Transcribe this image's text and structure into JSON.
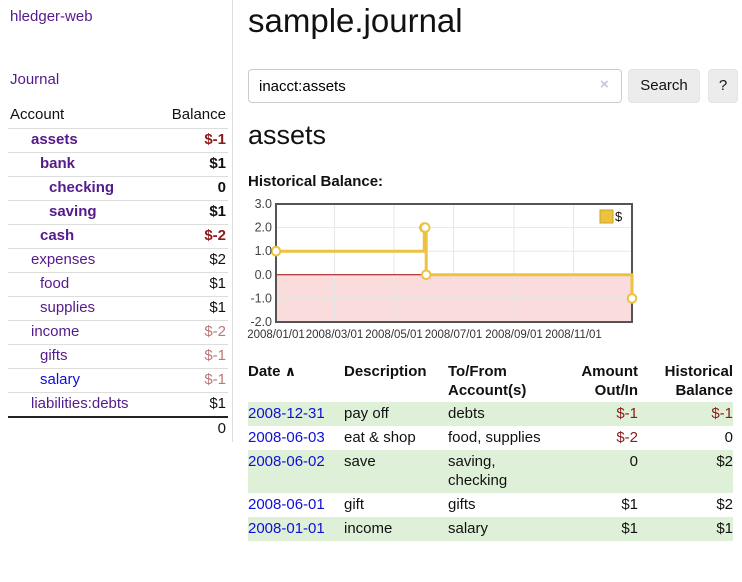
{
  "app": {
    "brand": "hledger-web",
    "nav_journal": "Journal"
  },
  "colors": {
    "link_purple": "#551a8b",
    "link_blue": "#0f0fd6",
    "negative_strong": "#8b1a1a",
    "negative_soft": "#bb7777",
    "row_green": "#dff0d8",
    "chart_line": "#edc240",
    "chart_negative_fill": "#fbdcdc",
    "chart_zero_line": "#a40000"
  },
  "sidebar": {
    "header": {
      "account": "Account",
      "balance": "Balance"
    },
    "rows": [
      {
        "name": "assets",
        "balance": "$-1",
        "indent": 1,
        "bold": true,
        "neg": "strong",
        "link": "purple"
      },
      {
        "name": "bank",
        "balance": "$1",
        "indent": 2,
        "bold": true,
        "neg": "",
        "link": "purple"
      },
      {
        "name": "checking",
        "balance": "0",
        "indent": 3,
        "bold": true,
        "neg": "",
        "link": "purple"
      },
      {
        "name": "saving",
        "balance": "$1",
        "indent": 3,
        "bold": true,
        "neg": "",
        "link": "purple"
      },
      {
        "name": "cash",
        "balance": "$-2",
        "indent": 2,
        "bold": true,
        "neg": "strong",
        "link": "purple"
      },
      {
        "name": "expenses",
        "balance": "$2",
        "indent": 1,
        "bold": false,
        "neg": "",
        "link": "purple"
      },
      {
        "name": "food",
        "balance": "$1",
        "indent": 2,
        "bold": false,
        "neg": "",
        "link": "purple"
      },
      {
        "name": "supplies",
        "balance": "$1",
        "indent": 2,
        "bold": false,
        "neg": "",
        "link": "purple"
      },
      {
        "name": "income",
        "balance": "$-2",
        "indent": 1,
        "bold": false,
        "neg": "soft",
        "link": "purple"
      },
      {
        "name": "gifts",
        "balance": "$-1",
        "indent": 2,
        "bold": false,
        "neg": "soft",
        "link": "purple"
      },
      {
        "name": "salary",
        "balance": "$-1",
        "indent": 2,
        "bold": false,
        "neg": "soft",
        "link": "blue"
      },
      {
        "name": "liabilities:debts",
        "balance": "$1",
        "indent": 1,
        "bold": false,
        "neg": "",
        "link": "purple"
      }
    ],
    "total": "0"
  },
  "header": {
    "title": "sample.journal"
  },
  "search": {
    "value": "inacct:assets",
    "clear_icon": "×",
    "button_label": "Search",
    "help_label": "?"
  },
  "account_page": {
    "title": "assets",
    "chart_label": "Historical Balance:"
  },
  "chart_data": {
    "type": "line",
    "title": "Historical Balance:",
    "step": true,
    "x_start": "2008-01-01",
    "x_end": "2008-12-31",
    "series": [
      {
        "name": "$",
        "color": "#edc240",
        "points": [
          {
            "date": "2008-01-01",
            "value": 1
          },
          {
            "date": "2008-06-01",
            "value": 2
          },
          {
            "date": "2008-06-02",
            "value": 2
          },
          {
            "date": "2008-06-03",
            "value": 0
          },
          {
            "date": "2008-12-31",
            "value": -1
          }
        ]
      }
    ],
    "ylim": [
      -2,
      3
    ],
    "yticks": [
      "3.0",
      "2.0",
      "1.0",
      "0.0",
      "-1.0",
      "-2.0"
    ],
    "xticks": [
      "2008/01/01",
      "2008/03/01",
      "2008/05/01",
      "2008/07/01",
      "2008/09/01",
      "2008/11/01"
    ],
    "grid": true,
    "legend_position": "top-right",
    "negative_fill": "#fbdcdc",
    "zero_line_color": "#a40000"
  },
  "register": {
    "columns": [
      "Date",
      "Description",
      "To/From Account(s)",
      "Amount Out/In",
      "Historical Balance"
    ],
    "sort_icon": "∧",
    "rows": [
      {
        "date": "2008-12-31",
        "description": "pay off",
        "accounts": "debts",
        "amount": "$-1",
        "balance": "$-1",
        "amount_neg": true,
        "balance_neg": true,
        "green": true
      },
      {
        "date": "2008-06-03",
        "description": "eat & shop",
        "accounts": "food, supplies",
        "amount": "$-2",
        "balance": "0",
        "amount_neg": true,
        "balance_neg": false,
        "green": false
      },
      {
        "date": "2008-06-02",
        "description": "save",
        "accounts": "saving, checking",
        "amount": "0",
        "balance": "$2",
        "amount_neg": false,
        "balance_neg": false,
        "green": true
      },
      {
        "date": "2008-06-01",
        "description": "gift",
        "accounts": "gifts",
        "amount": "$1",
        "balance": "$2",
        "amount_neg": false,
        "balance_neg": false,
        "green": false
      },
      {
        "date": "2008-01-01",
        "description": "income",
        "accounts": "salary",
        "amount": "$1",
        "balance": "$1",
        "amount_neg": false,
        "balance_neg": false,
        "green": true
      }
    ]
  }
}
